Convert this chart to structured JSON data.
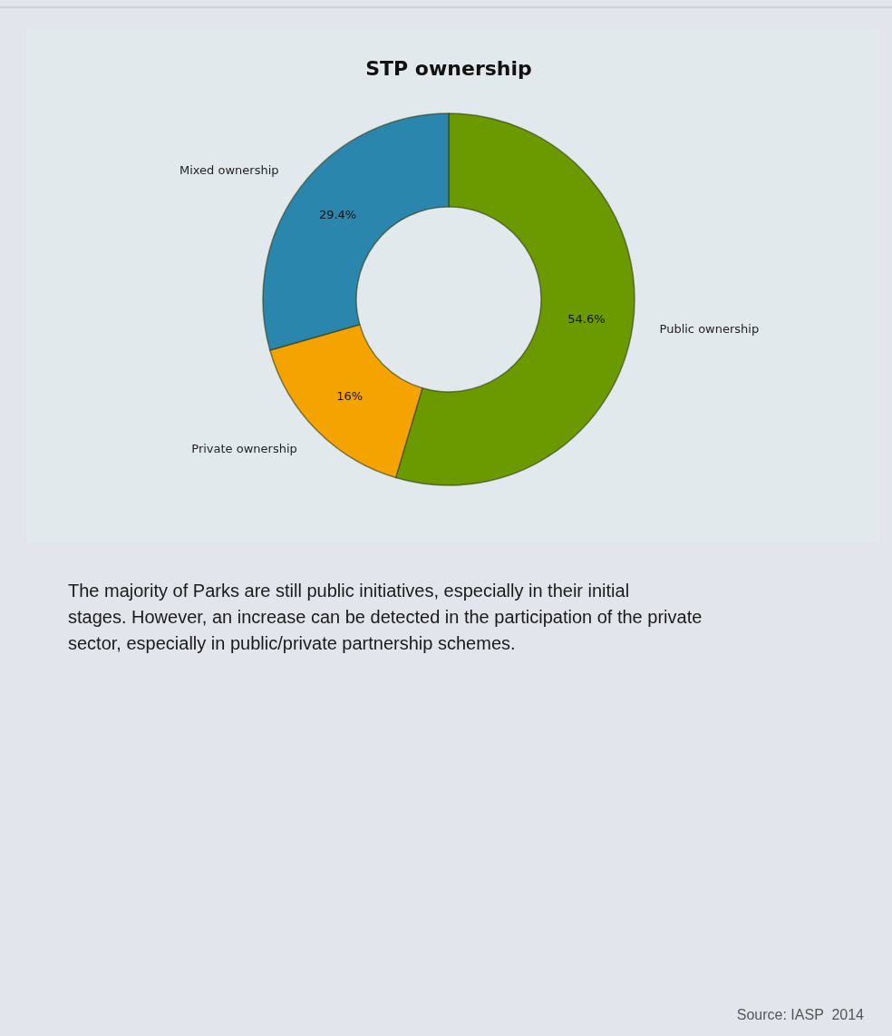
{
  "chart_data": {
    "type": "donut",
    "title": "STP ownership",
    "categories": [
      "Public ownership",
      "Private ownership",
      "Mixed ownership"
    ],
    "values": [
      54.6,
      16,
      29.4
    ],
    "colors": [
      "#6a9a00",
      "#f5a300",
      "#2a86ad"
    ],
    "value_labels": [
      "54.6%",
      "16%",
      "29.4%"
    ],
    "annotations": [
      "The majority of Parks are still public initiatives, especially in their initial stages. However, an increase can be detected in the participation of the private sector, especially in public/private partnership schemes.",
      "Source: IASP  2014"
    ]
  }
}
